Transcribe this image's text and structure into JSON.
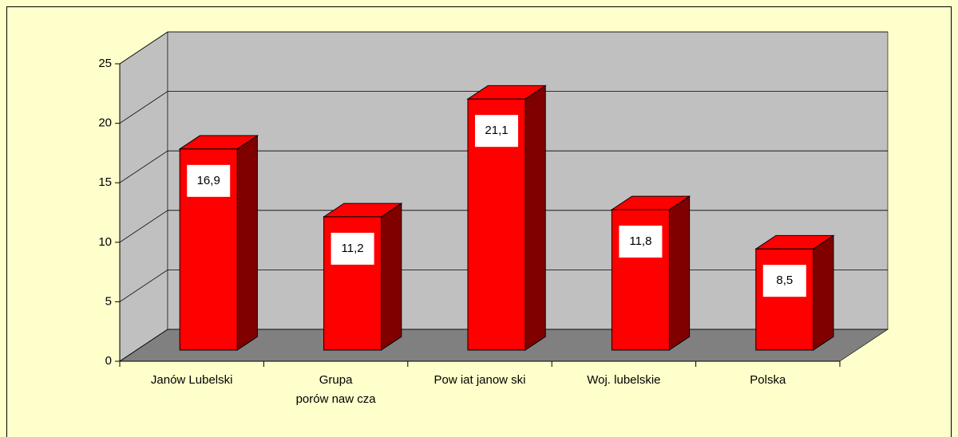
{
  "chart_data": {
    "type": "bar3d",
    "categories": [
      "Janów  Lubelski",
      "Grupa\nporów naw cza",
      "Pow iat janow ski",
      "Woj. lubelskie",
      "Polska"
    ],
    "values": [
      16.9,
      11.2,
      21.1,
      11.8,
      8.5
    ],
    "value_labels": [
      "16,9",
      "11,2",
      "21,1",
      "11,8",
      "8,5"
    ],
    "color": "#ff0000",
    "ylim": [
      0,
      25
    ],
    "yticks": [
      0,
      5,
      10,
      15,
      20,
      25
    ],
    "grid": true
  }
}
